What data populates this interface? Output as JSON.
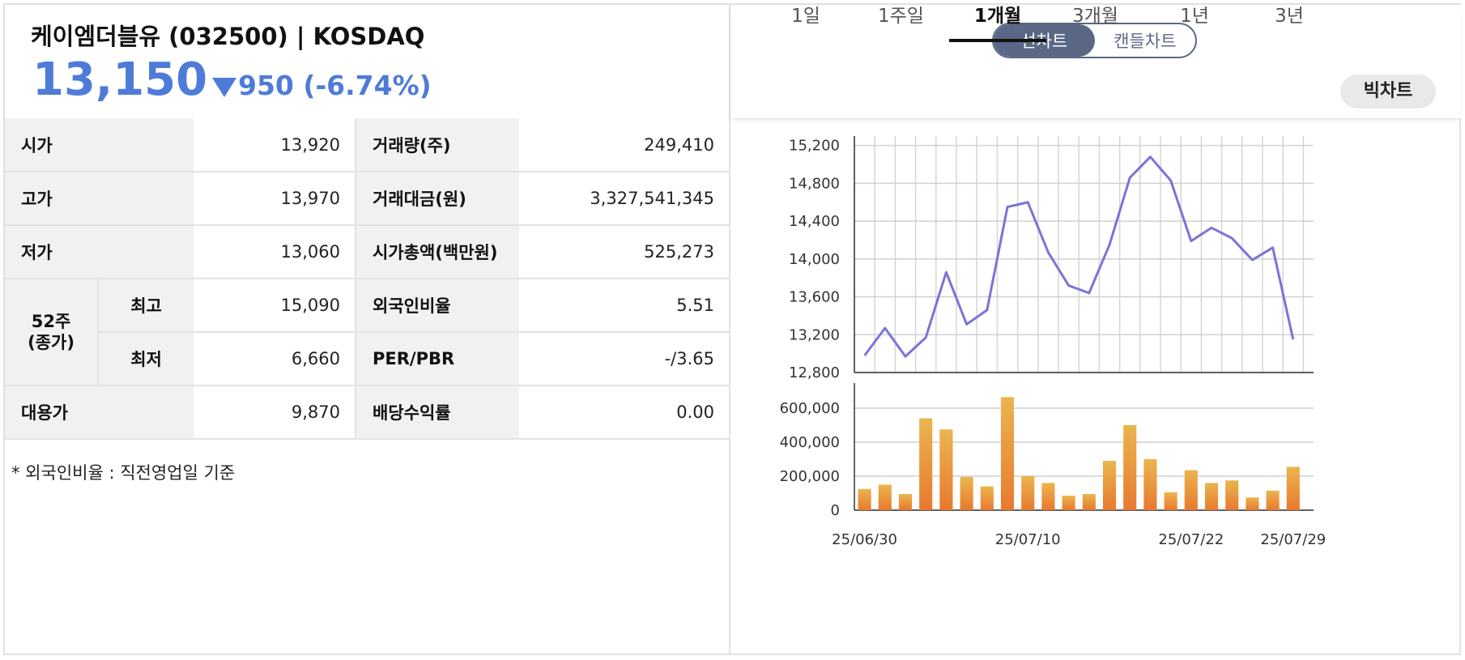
{
  "stock": {
    "name_line": "케이엠더블유 (032500) | KOSDAQ",
    "price": "13,150",
    "change": "950 (-6.74%)",
    "direction": "down",
    "color": "#4f7bd8"
  },
  "table": {
    "open_label": "시가",
    "open_value": "13,920",
    "volume_label": "거래량(주)",
    "volume_value": "249,410",
    "high_label": "고가",
    "high_value": "13,970",
    "amount_label": "거래대금(원)",
    "amount_value": "3,327,541,345",
    "low_label": "저가",
    "low_value": "13,060",
    "mcap_label": "시가총액(백만원)",
    "mcap_value": "525,273",
    "w52_label_1": "52주",
    "w52_label_2": "(종가)",
    "w52_high_label": "최고",
    "w52_high_value": "15,090",
    "foreign_label": "외국인비율",
    "foreign_value": "5.51",
    "w52_low_label": "최저",
    "w52_low_value": "6,660",
    "perpbr_label": "PER/PBR",
    "perpbr_value": "-/3.65",
    "sub_label": "대용가",
    "sub_value": "9,870",
    "dividend_label": "배당수익률",
    "dividend_value": "0.00"
  },
  "note": "* 외국인비율 : 직전영업일 기준",
  "toggle": {
    "line_label": "선차트",
    "candle_label": "캔들차트",
    "selected": "선차트"
  },
  "periods": [
    "1일",
    "1주일",
    "1개월",
    "3개월",
    "1년",
    "3년"
  ],
  "active_period": "1개월",
  "big_chart_label": "빅차트",
  "chart_data": [
    {
      "type": "line",
      "series": [
        {
          "values": [
            12980,
            13270,
            12970,
            13170,
            13860,
            13310,
            13460,
            14550,
            14600,
            14070,
            13720,
            13640,
            14150,
            14860,
            15080,
            14830,
            14190,
            14330,
            14220,
            13990,
            14120,
            13150
          ]
        }
      ],
      "ylim": [
        12800,
        15300
      ],
      "yticks": [
        "15,200",
        "14,800",
        "14,400",
        "14,000",
        "13,600",
        "13,200",
        "12,800"
      ],
      "ytick_values": [
        15200,
        14800,
        14400,
        14000,
        13600,
        13200,
        12800
      ],
      "grid": true,
      "color": "#7b74d6"
    },
    {
      "type": "bar",
      "categories": [
        "25/06/30",
        "",
        "",
        "",
        "",
        "",
        "",
        "",
        "25/07/10",
        "",
        "",
        "",
        "",
        "",
        "",
        "",
        "25/07/22",
        "",
        "",
        "",
        "",
        "25/07/29"
      ],
      "x_tick_labels": [
        "25/06/30",
        "25/07/10",
        "25/07/22",
        "25/07/29"
      ],
      "values": [
        125000,
        150000,
        95000,
        540000,
        475000,
        195000,
        140000,
        665000,
        200000,
        160000,
        85000,
        95000,
        290000,
        500000,
        300000,
        105000,
        235000,
        160000,
        175000,
        75000,
        115000,
        255000
      ],
      "ylim": [
        0,
        700000
      ],
      "yticks": [
        "600,000",
        "400,000",
        "200,000",
        "0"
      ],
      "ytick_values": [
        600000,
        400000,
        200000,
        0
      ],
      "grid": true,
      "colors": [
        "#eab54e",
        "#e8792f"
      ]
    }
  ]
}
